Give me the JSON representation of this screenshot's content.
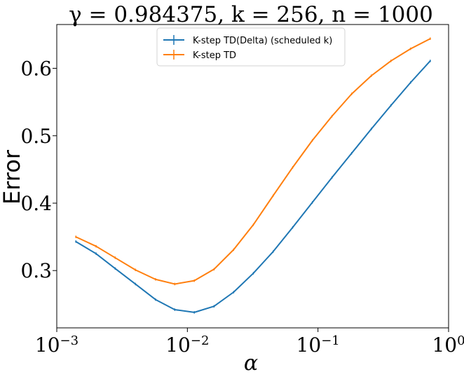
{
  "chart_data": {
    "type": "line",
    "title": "γ = 0.984375, k = 256, n = 1000",
    "xlabel": "α",
    "ylabel": "Error",
    "xscale": "log",
    "xlim": [
      0.001,
      1
    ],
    "ylim": [
      0.215,
      0.665
    ],
    "grid": false,
    "legend_position": "upper center",
    "x_ticks": [
      {
        "value": 0.001,
        "base": "10",
        "exp": "−3"
      },
      {
        "value": 0.01,
        "base": "10",
        "exp": "−2"
      },
      {
        "value": 0.1,
        "base": "10",
        "exp": "−1"
      },
      {
        "value": 1,
        "base": "10",
        "exp": "0"
      }
    ],
    "y_ticks": [
      {
        "value": 0.3,
        "label": "0.3"
      },
      {
        "value": 0.4,
        "label": "0.4"
      },
      {
        "value": 0.5,
        "label": "0.5"
      },
      {
        "value": 0.6,
        "label": "0.6"
      }
    ],
    "x": [
      0.0014,
      0.002,
      0.0028,
      0.004,
      0.0057,
      0.008,
      0.0113,
      0.016,
      0.0226,
      0.032,
      0.0453,
      0.064,
      0.0905,
      0.128,
      0.181,
      0.256,
      0.362,
      0.512,
      0.724
    ],
    "series": [
      {
        "name": "K-step TD(Delta) (scheduled k)",
        "color": "#1f77b4",
        "values": [
          0.343,
          0.325,
          0.303,
          0.28,
          0.257,
          0.242,
          0.238,
          0.247,
          0.268,
          0.296,
          0.328,
          0.364,
          0.401,
          0.438,
          0.474,
          0.51,
          0.545,
          0.579,
          0.611
        ]
      },
      {
        "name": "K-step TD",
        "color": "#ff7f0e",
        "values": [
          0.35,
          0.336,
          0.319,
          0.301,
          0.287,
          0.28,
          0.285,
          0.302,
          0.331,
          0.368,
          0.411,
          0.453,
          0.493,
          0.529,
          0.562,
          0.589,
          0.611,
          0.629,
          0.644
        ]
      }
    ]
  }
}
